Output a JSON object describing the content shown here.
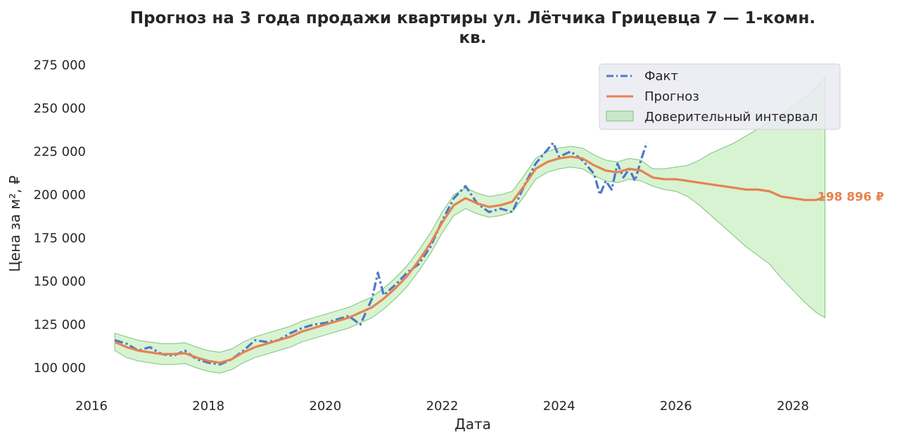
{
  "chart_data": {
    "type": "line",
    "title_line1": "Прогноз на 3 года продажи квартиры  ул. Лётчика Грицевца 7 — 1-комн.",
    "title_line2": "кв.",
    "xlabel": "Дата",
    "ylabel": "Цена за м², ₽",
    "xlim": [
      2016.0,
      2029.3
    ],
    "ylim": [
      85000,
      280000
    ],
    "x_ticks": [
      2016,
      2018,
      2020,
      2022,
      2024,
      2026,
      2028
    ],
    "x_tick_labels": [
      "2016",
      "2018",
      "2020",
      "2022",
      "2024",
      "2026",
      "2028"
    ],
    "y_ticks": [
      100000,
      125000,
      150000,
      175000,
      200000,
      225000,
      250000,
      275000
    ],
    "y_tick_labels": [
      "100 000",
      "125 000",
      "150 000",
      "175 000",
      "200 000",
      "225 000",
      "250 000",
      "275 000"
    ],
    "grid": false,
    "legend_position": "top-right",
    "last_value_label": "198 896 ₽",
    "colors": {
      "fact": "#4c78c8",
      "forecast": "#e58350",
      "interval_fill": "#98df8a",
      "interval_edge": "#7cc47a"
    },
    "series": [
      {
        "name": "Факт",
        "style": "dash-dot",
        "x": [
          2016.4,
          2016.6,
          2016.8,
          2017.0,
          2017.2,
          2017.4,
          2017.6,
          2017.8,
          2018.0,
          2018.2,
          2018.4,
          2018.6,
          2018.8,
          2019.0,
          2019.2,
          2019.4,
          2019.6,
          2019.8,
          2020.0,
          2020.2,
          2020.4,
          2020.6,
          2020.8,
          2020.9,
          2021.0,
          2021.2,
          2021.4,
          2021.6,
          2021.8,
          2022.0,
          2022.2,
          2022.4,
          2022.6,
          2022.8,
          2023.0,
          2023.2,
          2023.4,
          2023.6,
          2023.8,
          2023.9,
          2024.0,
          2024.2,
          2024.4,
          2024.6,
          2024.7,
          2024.8,
          2024.9,
          2025.0,
          2025.1,
          2025.2,
          2025.3,
          2025.4,
          2025.5
        ],
        "values": [
          116000,
          114000,
          110000,
          112000,
          108000,
          107000,
          110000,
          105000,
          103000,
          102000,
          105000,
          110000,
          116000,
          115000,
          116000,
          120000,
          123000,
          125000,
          126000,
          128000,
          130000,
          125000,
          140000,
          155000,
          142000,
          148000,
          155000,
          160000,
          170000,
          185000,
          198000,
          205000,
          195000,
          190000,
          192000,
          190000,
          205000,
          218000,
          226000,
          230000,
          222000,
          225000,
          220000,
          212000,
          200000,
          208000,
          203000,
          218000,
          210000,
          215000,
          208000,
          220000,
          230000
        ]
      },
      {
        "name": "Прогноз",
        "style": "solid",
        "x": [
          2016.4,
          2016.6,
          2016.8,
          2017.0,
          2017.2,
          2017.4,
          2017.6,
          2017.8,
          2018.0,
          2018.2,
          2018.4,
          2018.6,
          2018.8,
          2019.0,
          2019.2,
          2019.4,
          2019.6,
          2019.8,
          2020.0,
          2020.2,
          2020.4,
          2020.6,
          2020.8,
          2021.0,
          2021.2,
          2021.4,
          2021.6,
          2021.8,
          2022.0,
          2022.2,
          2022.4,
          2022.6,
          2022.8,
          2023.0,
          2023.2,
          2023.4,
          2023.6,
          2023.8,
          2024.0,
          2024.2,
          2024.4,
          2024.6,
          2024.8,
          2025.0,
          2025.2,
          2025.4,
          2025.6,
          2025.8,
          2026.0,
          2026.2,
          2026.4,
          2026.6,
          2026.8,
          2027.0,
          2027.2,
          2027.4,
          2027.6,
          2027.8,
          2028.0,
          2028.2,
          2028.4,
          2028.55
        ],
        "values": [
          115000,
          112000,
          110000,
          109000,
          108000,
          108000,
          108500,
          106000,
          104000,
          103000,
          105000,
          109000,
          112000,
          114000,
          116000,
          118000,
          121000,
          123000,
          125000,
          127000,
          129000,
          132000,
          135000,
          140000,
          146000,
          153000,
          162000,
          172000,
          184000,
          194000,
          198000,
          195000,
          193000,
          194000,
          196000,
          205000,
          215000,
          219000,
          221000,
          222000,
          221000,
          217000,
          214000,
          213000,
          215000,
          214000,
          210000,
          209000,
          209000,
          208000,
          207000,
          206000,
          205000,
          204000,
          203000,
          203000,
          202000,
          199000,
          198000,
          197000,
          197000,
          198896
        ]
      },
      {
        "name": "Доверительный интервал",
        "style": "band",
        "x": [
          2016.4,
          2016.6,
          2016.8,
          2017.0,
          2017.2,
          2017.4,
          2017.6,
          2017.8,
          2018.0,
          2018.2,
          2018.4,
          2018.6,
          2018.8,
          2019.0,
          2019.2,
          2019.4,
          2019.6,
          2019.8,
          2020.0,
          2020.2,
          2020.4,
          2020.6,
          2020.8,
          2021.0,
          2021.2,
          2021.4,
          2021.6,
          2021.8,
          2022.0,
          2022.2,
          2022.4,
          2022.6,
          2022.8,
          2023.0,
          2023.2,
          2023.4,
          2023.6,
          2023.8,
          2024.0,
          2024.2,
          2024.4,
          2024.6,
          2024.8,
          2025.0,
          2025.2,
          2025.4,
          2025.6,
          2025.8,
          2026.0,
          2026.2,
          2026.4,
          2026.6,
          2026.8,
          2027.0,
          2027.2,
          2027.4,
          2027.6,
          2027.8,
          2028.0,
          2028.2,
          2028.4,
          2028.55
        ],
        "lower": [
          110000,
          106000,
          104000,
          103000,
          102000,
          102000,
          102500,
          100000,
          98000,
          97000,
          99000,
          103000,
          106000,
          108000,
          110000,
          112000,
          115000,
          117000,
          119000,
          121000,
          123000,
          126000,
          129000,
          134000,
          140000,
          147000,
          156000,
          166000,
          178000,
          188000,
          192000,
          189000,
          187000,
          188000,
          190000,
          199000,
          209000,
          213000,
          215000,
          216000,
          215000,
          211000,
          208000,
          207000,
          209000,
          208000,
          205000,
          203000,
          202000,
          199000,
          194000,
          188000,
          182000,
          176000,
          170000,
          165000,
          160000,
          152000,
          145000,
          138000,
          132000,
          129000
        ],
        "upper": [
          120000,
          118000,
          116000,
          115000,
          114000,
          114000,
          114500,
          112000,
          110000,
          109000,
          111000,
          115000,
          118000,
          120000,
          122000,
          124000,
          127000,
          129000,
          131000,
          133000,
          135000,
          138000,
          141000,
          146000,
          152000,
          159000,
          168000,
          178000,
          190000,
          200000,
          204000,
          201000,
          199000,
          200000,
          202000,
          211000,
          221000,
          225000,
          227000,
          228000,
          227000,
          223000,
          220000,
          219000,
          221000,
          220000,
          215000,
          215000,
          216000,
          217000,
          220000,
          224000,
          227000,
          230000,
          234000,
          238000,
          242000,
          246000,
          251000,
          256000,
          262000,
          268000
        ]
      }
    ]
  }
}
